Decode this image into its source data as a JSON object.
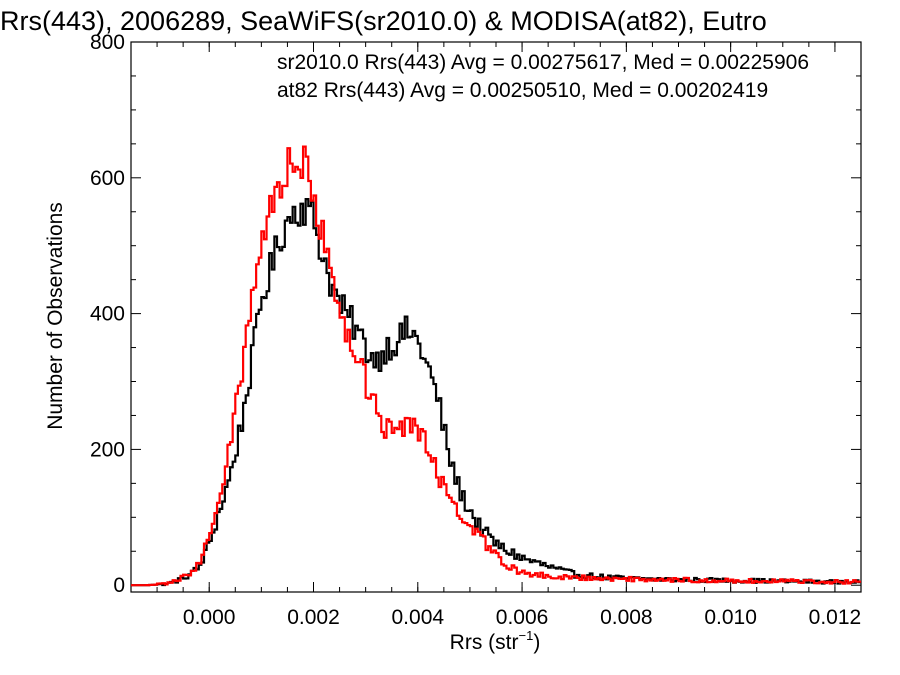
{
  "chart_data": {
    "type": "line",
    "title": "Rrs(443), 2006289, SeaWiFS(sr2010.0) & MODISA(at82), Eutro",
    "xlabel_main": "Rrs (str",
    "xlabel_sup": "−1",
    "xlabel_tail": ")",
    "ylabel": "Number of Observations",
    "xlim": [
      -0.0015,
      0.0125
    ],
    "ylim": [
      -10,
      800
    ],
    "x_ticks": [
      0.0,
      0.002,
      0.004,
      0.006,
      0.008,
      0.01,
      0.012
    ],
    "x_tick_labels": [
      "0.000",
      "0.002",
      "0.004",
      "0.006",
      "0.008",
      "0.010",
      "0.012"
    ],
    "y_ticks": [
      0,
      200,
      400,
      600,
      800
    ],
    "y_tick_labels": [
      "0",
      "200",
      "400",
      "600",
      "800"
    ],
    "bin_width": 5e-05,
    "series": [
      {
        "name": "sr2010.0",
        "color": "#000000",
        "annotation": "sr2010.0 Rrs(443) Avg = 0.00275617, Med = 0.00225906",
        "x": [
          -0.0012,
          -0.0008,
          -0.0005,
          -0.0002,
          0.0,
          0.0002,
          0.0004,
          0.0006,
          0.0008,
          0.001,
          0.0012,
          0.0014,
          0.0016,
          0.0018,
          0.002,
          0.0022,
          0.0024,
          0.0026,
          0.0028,
          0.003,
          0.0032,
          0.0034,
          0.0036,
          0.0038,
          0.004,
          0.0042,
          0.0044,
          0.0046,
          0.0048,
          0.005,
          0.0052,
          0.0054,
          0.0056,
          0.0058,
          0.006,
          0.0062,
          0.0064,
          0.0066,
          0.0068,
          0.007,
          0.0075,
          0.008,
          0.009,
          0.01,
          0.011,
          0.012,
          0.0125
        ],
        "values": [
          0,
          2,
          10,
          25,
          60,
          110,
          160,
          230,
          320,
          420,
          470,
          520,
          550,
          560,
          540,
          480,
          430,
          400,
          380,
          350,
          330,
          350,
          360,
          375,
          360,
          320,
          270,
          190,
          140,
          110,
          85,
          68,
          55,
          48,
          40,
          35,
          30,
          25,
          20,
          16,
          12,
          10,
          8,
          7,
          6,
          5,
          5
        ]
      },
      {
        "name": "at82",
        "color": "#ff0000",
        "annotation": "at82 Rrs(443) Avg = 0.00250510, Med = 0.00202419",
        "x": [
          -0.0012,
          -0.0008,
          -0.0005,
          -0.0002,
          0.0,
          0.0002,
          0.0004,
          0.0006,
          0.0008,
          0.001,
          0.0012,
          0.0014,
          0.0016,
          0.0018,
          0.002,
          0.0022,
          0.0024,
          0.0026,
          0.0028,
          0.003,
          0.0032,
          0.0034,
          0.0036,
          0.0038,
          0.004,
          0.0042,
          0.0044,
          0.0046,
          0.0048,
          0.005,
          0.0052,
          0.0054,
          0.0056,
          0.0058,
          0.006,
          0.0062,
          0.0064,
          0.0066,
          0.0068,
          0.007,
          0.0075,
          0.008,
          0.009,
          0.01,
          0.011,
          0.012,
          0.0125
        ],
        "values": [
          0,
          2,
          12,
          30,
          70,
          130,
          210,
          300,
          420,
          510,
          560,
          600,
          630,
          620,
          590,
          500,
          420,
          370,
          340,
          300,
          260,
          230,
          220,
          235,
          230,
          200,
          160,
          130,
          110,
          90,
          70,
          50,
          35,
          25,
          20,
          17,
          15,
          13,
          12,
          11,
          10,
          9,
          8,
          7,
          6,
          5,
          5
        ]
      }
    ]
  }
}
